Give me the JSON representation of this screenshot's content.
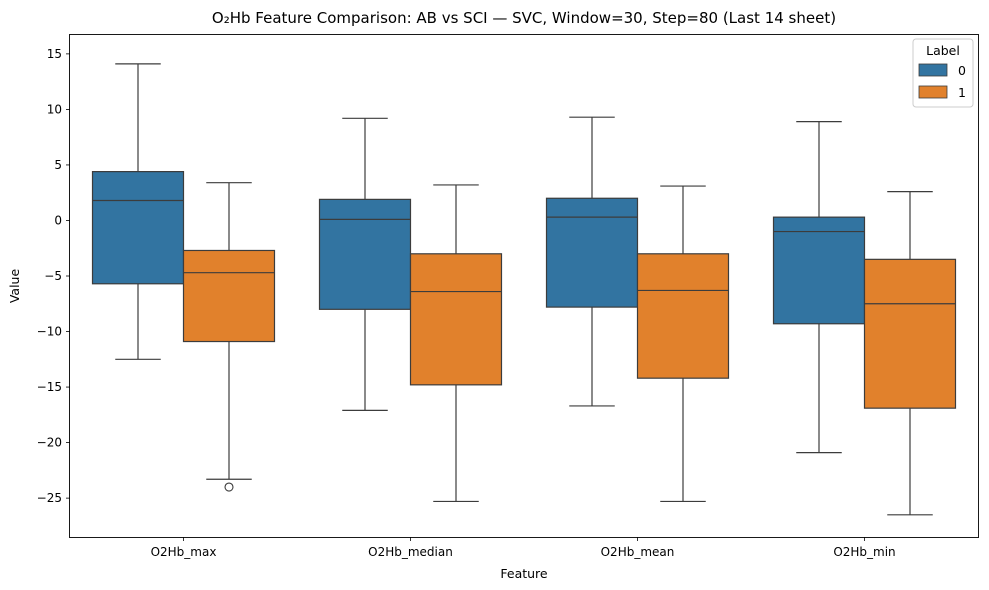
{
  "chart_data": {
    "type": "box",
    "title": "O₂Hb Feature Comparison: AB vs SCI — SVC, Window=30, Step=80 (Last 14 sheet)",
    "xlabel": "Feature",
    "ylabel": "Value",
    "ylim": [
      -28.5,
      16.7
    ],
    "yticks": [
      15,
      10,
      5,
      0,
      -5,
      -10,
      -15,
      -20,
      -25
    ],
    "categories": [
      "O2Hb_max",
      "O2Hb_median",
      "O2Hb_mean",
      "O2Hb_min"
    ],
    "legend": {
      "title": "Label",
      "position": "top-right"
    },
    "series": [
      {
        "name": "0",
        "color": "#3274a1",
        "boxes": [
          {
            "whisker_low": -12.5,
            "q1": -5.7,
            "median": 1.8,
            "q3": 4.4,
            "whisker_high": 14.1,
            "outliers": []
          },
          {
            "whisker_low": -17.1,
            "q1": -8.0,
            "median": 0.1,
            "q3": 1.9,
            "whisker_high": 9.2,
            "outliers": []
          },
          {
            "whisker_low": -16.7,
            "q1": -7.8,
            "median": 0.3,
            "q3": 2.0,
            "whisker_high": 9.3,
            "outliers": []
          },
          {
            "whisker_low": -20.9,
            "q1": -9.3,
            "median": -1.0,
            "q3": 0.3,
            "whisker_high": 8.9,
            "outliers": []
          }
        ]
      },
      {
        "name": "1",
        "color": "#e1812c",
        "boxes": [
          {
            "whisker_low": -23.3,
            "q1": -10.9,
            "median": -4.7,
            "q3": -2.7,
            "whisker_high": 3.4,
            "outliers": [
              -24.0
            ]
          },
          {
            "whisker_low": -25.3,
            "q1": -14.8,
            "median": -6.4,
            "q3": -3.0,
            "whisker_high": 3.2,
            "outliers": []
          },
          {
            "whisker_low": -25.3,
            "q1": -14.2,
            "median": -6.3,
            "q3": -3.0,
            "whisker_high": 3.1,
            "outliers": []
          },
          {
            "whisker_low": -26.5,
            "q1": -16.9,
            "median": -7.5,
            "q3": -3.5,
            "whisker_high": 2.6,
            "outliers": []
          }
        ]
      }
    ],
    "grid": false
  }
}
